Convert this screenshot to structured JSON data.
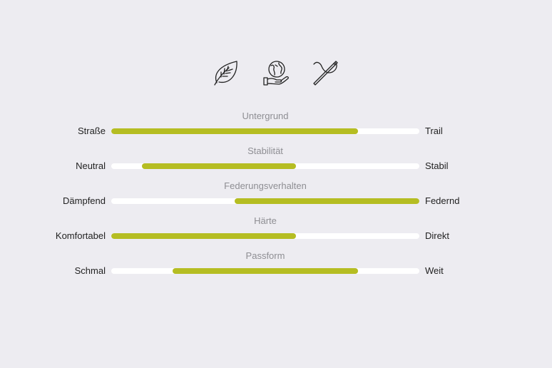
{
  "icons": [
    {
      "name": "leaf-icon"
    },
    {
      "name": "globe-in-hand-icon"
    },
    {
      "name": "needle-thread-icon"
    }
  ],
  "accent_color": "#b5bd22",
  "scales": [
    {
      "title": "Untergrund",
      "left": "Straße",
      "right": "Trail",
      "range": [
        0,
        0.8
      ]
    },
    {
      "title": "Stabilität",
      "left": "Neutral",
      "right": "Stabil",
      "range": [
        0.1,
        0.6
      ]
    },
    {
      "title": "Federungsverhalten",
      "left": "Dämpfend",
      "right": "Federnd",
      "range": [
        0.4,
        1.0
      ]
    },
    {
      "title": "Härte",
      "left": "Komfortabel",
      "right": "Direkt",
      "range": [
        0,
        0.6
      ]
    },
    {
      "title": "Passform",
      "left": "Schmal",
      "right": "Weit",
      "range": [
        0.2,
        0.8
      ]
    }
  ]
}
